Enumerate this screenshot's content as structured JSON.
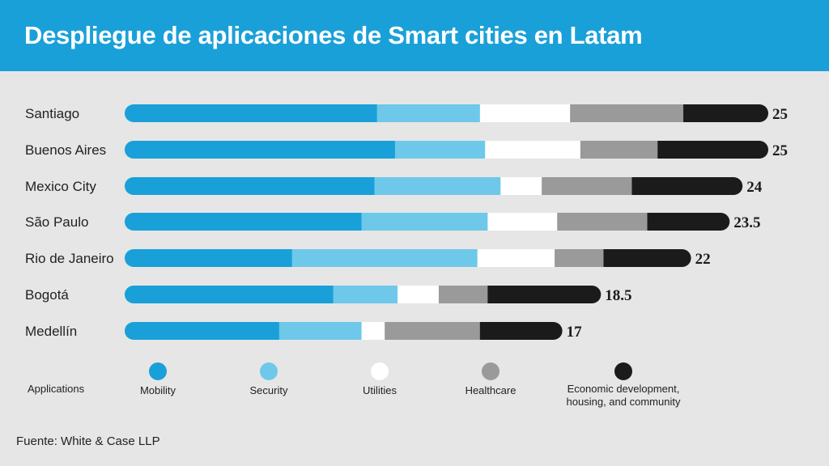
{
  "title": "Despliegue de aplicaciones de Smart cities en Latam",
  "source": "Fuente: White & Case LLP",
  "legend_title": "Applications",
  "colors": {
    "Mobility": "#1aa0d8",
    "Security": "#6ec8e9",
    "Utilities": "#ffffff",
    "Healthcare": "#9a9a9a",
    "Economic development, housing, and community": "#1b1b1b"
  },
  "chart_data": {
    "type": "bar",
    "orientation": "horizontal",
    "stacked": true,
    "title": "Despliegue de aplicaciones de Smart cities en Latam",
    "xlabel": "",
    "ylabel": "",
    "legend_position": "bottom",
    "categories": [
      "Santiago",
      "Buenos Aires",
      "Mexico City",
      "São Paulo",
      "Rio de Janeiro",
      "Bogotá",
      "Medellín"
    ],
    "series": [
      {
        "name": "Mobility",
        "values": [
          9.8,
          10.5,
          9.7,
          9.2,
          6.5,
          8.1,
          6.0
        ]
      },
      {
        "name": "Security",
        "values": [
          4.0,
          3.5,
          4.9,
          4.9,
          7.2,
          2.5,
          3.2
        ]
      },
      {
        "name": "Utilities",
        "values": [
          3.5,
          3.7,
          1.6,
          2.7,
          3.0,
          1.6,
          0.9
        ]
      },
      {
        "name": "Healthcare",
        "values": [
          4.4,
          3.0,
          3.5,
          3.5,
          1.9,
          1.9,
          3.7
        ]
      },
      {
        "name": "Economic development, housing, and community",
        "values": [
          3.3,
          4.3,
          4.3,
          3.2,
          3.4,
          4.4,
          3.2
        ]
      }
    ],
    "totals": [
      "25",
      "25",
      "24",
      "23.5",
      "22",
      "18.5",
      "17"
    ],
    "xlim": [
      0,
      25
    ]
  }
}
